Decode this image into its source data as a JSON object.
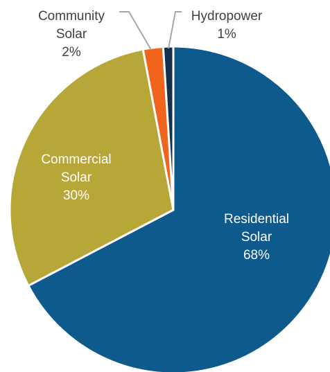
{
  "chart_data": {
    "type": "pie",
    "slices": [
      {
        "label": "Residential Solar",
        "lines": [
          "Residential",
          "Solar"
        ],
        "value": 68,
        "value_label": "68%",
        "color": "#0e5a8c",
        "label_color": "#ffffff"
      },
      {
        "label": "Commercial Solar",
        "lines": [
          "Commercial",
          "Solar"
        ],
        "value": 30,
        "value_label": "30%",
        "color": "#b7a638",
        "label_color": "#ffffff"
      },
      {
        "label": "Community Solar",
        "lines": [
          "Community",
          "Solar"
        ],
        "value": 2,
        "value_label": "2%",
        "color": "#f0641e",
        "label_color": "#404040"
      },
      {
        "label": "Hydropower",
        "lines": [
          "Hydropower"
        ],
        "value": 1,
        "value_label": "1%",
        "color": "#13304f",
        "label_color": "#404040"
      }
    ],
    "start_angle": 0,
    "direction": "clockwise",
    "leader_line_color": "#a6a6a6"
  }
}
